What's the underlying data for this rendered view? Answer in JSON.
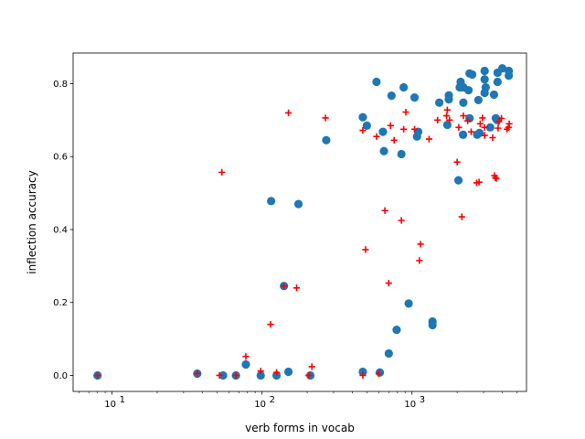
{
  "chart_data": {
    "type": "scatter",
    "xlabel": "verb forms in vocab",
    "ylabel": "inflection accuracy",
    "xscale": "log",
    "xlim": [
      5.5,
      5800
    ],
    "ylim": [
      -0.044,
      0.884
    ],
    "x_major_ticks": [
      10,
      100,
      1000
    ],
    "x_tick_labels": [
      {
        "base": "10",
        "exp": "1"
      },
      {
        "base": "10",
        "exp": "2"
      },
      {
        "base": "10",
        "exp": "3"
      }
    ],
    "y_ticks": [
      0.0,
      0.2,
      0.4,
      0.6,
      0.8
    ],
    "y_tick_labels": [
      "0.0",
      "0.2",
      "0.4",
      "0.6",
      "0.8"
    ],
    "series": [
      {
        "marker": "circle",
        "color": "#1f77b4",
        "points": [
          [
            8,
            0.0
          ],
          [
            37,
            0.005
          ],
          [
            55,
            0.0
          ],
          [
            67,
            0.0
          ],
          [
            78,
            0.03
          ],
          [
            98,
            0.0
          ],
          [
            125,
            0.0
          ],
          [
            140,
            0.245
          ],
          [
            150,
            0.01
          ],
          [
            210,
            0.0
          ],
          [
            115,
            0.478
          ],
          [
            175,
            0.47
          ],
          [
            268,
            0.645
          ],
          [
            470,
            0.01
          ],
          [
            610,
            0.008
          ],
          [
            700,
            0.06
          ],
          [
            790,
            0.125
          ],
          [
            950,
            0.197
          ],
          [
            1370,
            0.148
          ],
          [
            1370,
            0.138
          ],
          [
            470,
            0.708
          ],
          [
            500,
            0.685
          ],
          [
            580,
            0.805
          ],
          [
            640,
            0.668
          ],
          [
            650,
            0.615
          ],
          [
            730,
            0.767
          ],
          [
            850,
            0.607
          ],
          [
            880,
            0.79
          ],
          [
            1040,
            0.762
          ],
          [
            1080,
            0.655
          ],
          [
            1100,
            0.668
          ],
          [
            1520,
            0.748
          ],
          [
            1720,
            0.687
          ],
          [
            1760,
            0.768
          ],
          [
            1760,
            0.757
          ],
          [
            2040,
            0.535
          ],
          [
            2080,
            0.79
          ],
          [
            2110,
            0.805
          ],
          [
            2190,
            0.66
          ],
          [
            2200,
            0.748
          ],
          [
            2200,
            0.79
          ],
          [
            2380,
            0.782
          ],
          [
            2420,
            0.705
          ],
          [
            2420,
            0.828
          ],
          [
            2520,
            0.825
          ],
          [
            2720,
            0.66
          ],
          [
            2770,
            0.755
          ],
          [
            2820,
            0.665
          ],
          [
            3050,
            0.835
          ],
          [
            3050,
            0.812
          ],
          [
            3100,
            0.79
          ],
          [
            3050,
            0.775
          ],
          [
            3320,
            0.68
          ],
          [
            3520,
            0.77
          ],
          [
            3620,
            0.705
          ],
          [
            3720,
            0.805
          ],
          [
            3720,
            0.83
          ],
          [
            4000,
            0.842
          ],
          [
            4420,
            0.835
          ],
          [
            4420,
            0.822
          ],
          [
            3700,
            0.7
          ]
        ]
      },
      {
        "marker": "plus",
        "color": "#ff0000",
        "points": [
          [
            8,
            0.0
          ],
          [
            37,
            0.005
          ],
          [
            52,
            0.0
          ],
          [
            67,
            0.0
          ],
          [
            78,
            0.052
          ],
          [
            98,
            0.012
          ],
          [
            125,
            0.008
          ],
          [
            140,
            0.245
          ],
          [
            205,
            0.0
          ],
          [
            215,
            0.024
          ],
          [
            54,
            0.557
          ],
          [
            114,
            0.14
          ],
          [
            150,
            0.72
          ],
          [
            170,
            0.24
          ],
          [
            265,
            0.706
          ],
          [
            470,
            0.0
          ],
          [
            490,
            0.345
          ],
          [
            470,
            0.672
          ],
          [
            580,
            0.655
          ],
          [
            600,
            0.005
          ],
          [
            660,
            0.452
          ],
          [
            700,
            0.253
          ],
          [
            720,
            0.685
          ],
          [
            760,
            0.645
          ],
          [
            850,
            0.425
          ],
          [
            880,
            0.675
          ],
          [
            910,
            0.722
          ],
          [
            1040,
            0.675
          ],
          [
            1120,
            0.315
          ],
          [
            1140,
            0.36
          ],
          [
            1300,
            0.648
          ],
          [
            1480,
            0.7
          ],
          [
            1700,
            0.712
          ],
          [
            1720,
            0.728
          ],
          [
            1780,
            0.7
          ],
          [
            2000,
            0.585
          ],
          [
            2050,
            0.68
          ],
          [
            2150,
            0.435
          ],
          [
            2200,
            0.712
          ],
          [
            2350,
            0.698
          ],
          [
            2480,
            0.668
          ],
          [
            2700,
            0.528
          ],
          [
            2800,
            0.53
          ],
          [
            2850,
            0.69
          ],
          [
            2950,
            0.706
          ],
          [
            3050,
            0.68
          ],
          [
            3050,
            0.658
          ],
          [
            3450,
            0.652
          ],
          [
            3550,
            0.548
          ],
          [
            3600,
            0.542
          ],
          [
            3650,
            0.54
          ],
          [
            3750,
            0.678
          ],
          [
            3800,
            0.696
          ],
          [
            3950,
            0.705
          ],
          [
            4300,
            0.675
          ],
          [
            4450,
            0.69
          ],
          [
            4400,
            0.68
          ]
        ]
      }
    ]
  }
}
